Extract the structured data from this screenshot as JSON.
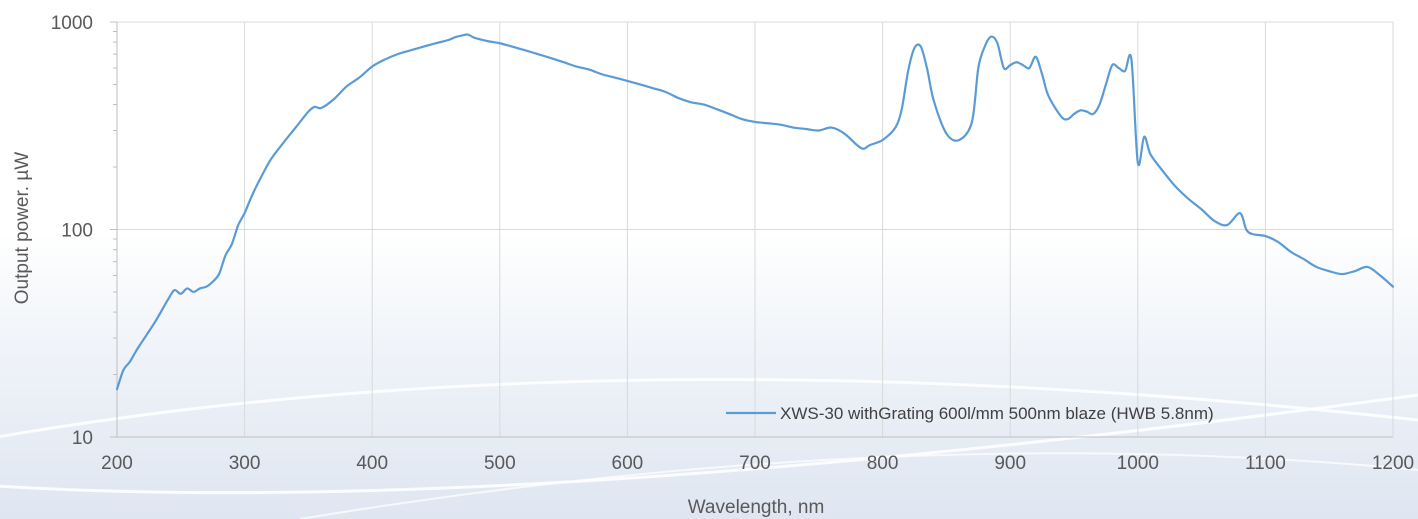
{
  "chart_data": {
    "type": "line",
    "title": "",
    "xlabel": "Wavelength, nm",
    "ylabel": "Output power. µW",
    "xlim": [
      200,
      1200
    ],
    "ylim": [
      10,
      1000
    ],
    "yscale": "log",
    "grid": true,
    "legend_position": "bottom-right",
    "x_ticks": [
      "200",
      "300",
      "400",
      "500",
      "600",
      "700",
      "800",
      "900",
      "1000",
      "1100",
      "1200"
    ],
    "y_ticks": [
      "10",
      "100",
      "1000"
    ],
    "series": [
      {
        "name": "XWS-30 withGrating 600l/mm 500nm blaze (HWB 5.8nm)",
        "color": "#5b9bd5",
        "x": [
          200,
          205,
          210,
          215,
          220,
          230,
          240,
          245,
          250,
          255,
          260,
          265,
          270,
          275,
          280,
          285,
          290,
          295,
          300,
          305,
          310,
          320,
          330,
          340,
          350,
          355,
          360,
          370,
          380,
          390,
          400,
          410,
          420,
          430,
          440,
          450,
          460,
          465,
          470,
          475,
          480,
          490,
          500,
          510,
          520,
          530,
          540,
          550,
          560,
          570,
          580,
          590,
          600,
          610,
          620,
          630,
          640,
          650,
          660,
          670,
          680,
          690,
          700,
          710,
          720,
          730,
          740,
          750,
          760,
          770,
          780,
          785,
          790,
          800,
          810,
          815,
          820,
          825,
          830,
          835,
          840,
          850,
          860,
          870,
          875,
          880,
          885,
          890,
          895,
          900,
          905,
          910,
          915,
          920,
          925,
          930,
          940,
          945,
          950,
          955,
          960,
          965,
          970,
          975,
          980,
          985,
          990,
          995,
          1000,
          1005,
          1010,
          1020,
          1030,
          1040,
          1050,
          1060,
          1070,
          1080,
          1085,
          1090,
          1100,
          1110,
          1120,
          1130,
          1140,
          1150,
          1160,
          1170,
          1180,
          1190,
          1200
        ],
        "values": [
          17,
          21,
          23,
          26,
          29,
          36,
          46,
          51,
          49,
          52,
          50,
          52,
          53,
          56,
          61,
          75,
          85,
          105,
          120,
          142,
          165,
          215,
          260,
          310,
          370,
          390,
          385,
          425,
          490,
          540,
          610,
          660,
          700,
          730,
          760,
          790,
          820,
          845,
          860,
          870,
          840,
          810,
          790,
          760,
          730,
          700,
          670,
          640,
          610,
          590,
          560,
          540,
          520,
          500,
          480,
          460,
          430,
          410,
          400,
          380,
          360,
          340,
          330,
          325,
          320,
          310,
          305,
          300,
          310,
          290,
          255,
          245,
          255,
          270,
          310,
          380,
          580,
          750,
          760,
          590,
          420,
          290,
          270,
          330,
          600,
          760,
          850,
          790,
          600,
          620,
          640,
          620,
          600,
          680,
          560,
          440,
          350,
          340,
          360,
          375,
          370,
          360,
          400,
          500,
          620,
          600,
          580,
          660,
          210,
          280,
          230,
          190,
          160,
          140,
          125,
          110,
          105,
          120,
          100,
          95,
          93,
          87,
          78,
          72,
          66,
          63,
          61,
          63,
          66,
          60,
          53
        ]
      }
    ]
  }
}
